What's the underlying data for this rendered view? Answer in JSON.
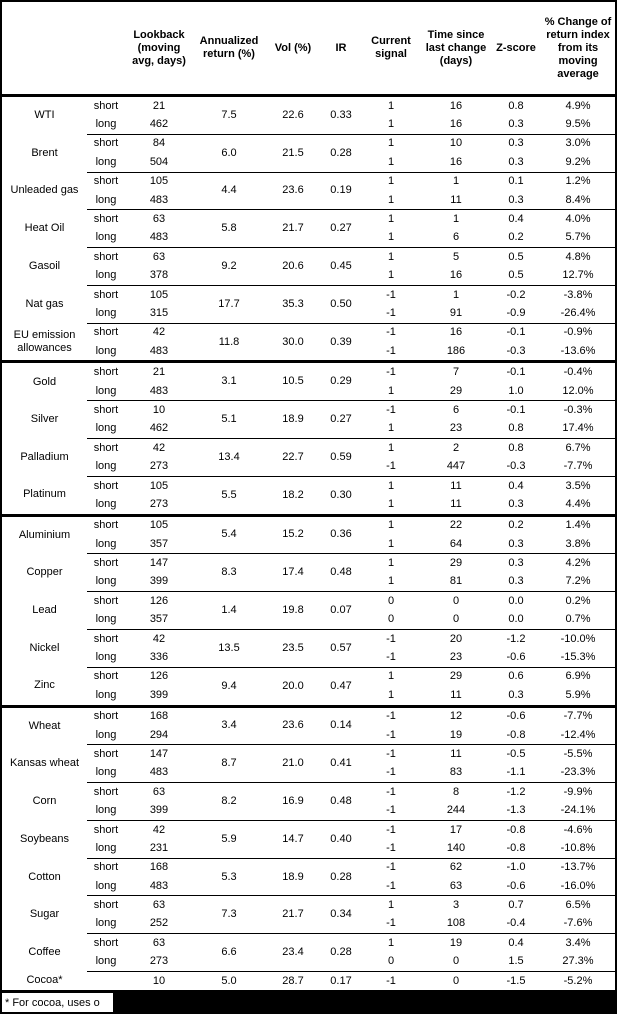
{
  "table": {
    "headers": [
      "Lookback (moving avg, days)",
      "Annualized return (%)",
      "Vol (%)",
      "IR",
      "Current signal",
      "Time since last change (days)",
      "Z-score",
      "% Change of return index from its moving average"
    ],
    "footnote": "* For cocoa, uses o",
    "colors": {
      "text": "#000000",
      "background": "#ffffff",
      "rule": "#000000"
    },
    "sections": [
      {
        "name": "energy",
        "commodities": [
          {
            "name": "WTI",
            "annualized": "7.5",
            "vol": "22.6",
            "ir": "0.33",
            "rows": [
              {
                "horizon": "short",
                "lookback": "21",
                "signal": "1",
                "time": "16",
                "z": "0.8",
                "pct": "4.9%"
              },
              {
                "horizon": "long",
                "lookback": "462",
                "signal": "1",
                "time": "16",
                "z": "0.3",
                "pct": "9.5%"
              }
            ]
          },
          {
            "name": "Brent",
            "annualized": "6.0",
            "vol": "21.5",
            "ir": "0.28",
            "rows": [
              {
                "horizon": "short",
                "lookback": "84",
                "signal": "1",
                "time": "10",
                "z": "0.3",
                "pct": "3.0%"
              },
              {
                "horizon": "long",
                "lookback": "504",
                "signal": "1",
                "time": "16",
                "z": "0.3",
                "pct": "9.2%"
              }
            ]
          },
          {
            "name": "Unleaded gas",
            "annualized": "4.4",
            "vol": "23.6",
            "ir": "0.19",
            "rows": [
              {
                "horizon": "short",
                "lookback": "105",
                "signal": "1",
                "time": "1",
                "z": "0.1",
                "pct": "1.2%"
              },
              {
                "horizon": "long",
                "lookback": "483",
                "signal": "1",
                "time": "11",
                "z": "0.3",
                "pct": "8.4%"
              }
            ]
          },
          {
            "name": "Heat Oil",
            "annualized": "5.8",
            "vol": "21.7",
            "ir": "0.27",
            "rows": [
              {
                "horizon": "short",
                "lookback": "63",
                "signal": "1",
                "time": "1",
                "z": "0.4",
                "pct": "4.0%"
              },
              {
                "horizon": "long",
                "lookback": "483",
                "signal": "1",
                "time": "6",
                "z": "0.2",
                "pct": "5.7%"
              }
            ]
          },
          {
            "name": "Gasoil",
            "annualized": "9.2",
            "vol": "20.6",
            "ir": "0.45",
            "rows": [
              {
                "horizon": "short",
                "lookback": "63",
                "signal": "1",
                "time": "5",
                "z": "0.5",
                "pct": "4.8%"
              },
              {
                "horizon": "long",
                "lookback": "378",
                "signal": "1",
                "time": "16",
                "z": "0.5",
                "pct": "12.7%"
              }
            ]
          },
          {
            "name": "Nat gas",
            "annualized": "17.7",
            "vol": "35.3",
            "ir": "0.50",
            "rows": [
              {
                "horizon": "short",
                "lookback": "105",
                "signal": "-1",
                "time": "1",
                "z": "-0.2",
                "pct": "-3.8%"
              },
              {
                "horizon": "long",
                "lookback": "315",
                "signal": "-1",
                "time": "91",
                "z": "-0.9",
                "pct": "-26.4%"
              }
            ]
          },
          {
            "name": "EU emission allowances",
            "annualized": "11.8",
            "vol": "30.0",
            "ir": "0.39",
            "rows": [
              {
                "horizon": "short",
                "lookback": "42",
                "signal": "-1",
                "time": "16",
                "z": "-0.1",
                "pct": "-0.9%"
              },
              {
                "horizon": "long",
                "lookback": "483",
                "signal": "-1",
                "time": "186",
                "z": "-0.3",
                "pct": "-13.6%"
              }
            ]
          }
        ]
      },
      {
        "name": "precious-metals",
        "commodities": [
          {
            "name": "Gold",
            "annualized": "3.1",
            "vol": "10.5",
            "ir": "0.29",
            "rows": [
              {
                "horizon": "short",
                "lookback": "21",
                "signal": "-1",
                "time": "7",
                "z": "-0.1",
                "pct": "-0.4%"
              },
              {
                "horizon": "long",
                "lookback": "483",
                "signal": "1",
                "time": "29",
                "z": "1.0",
                "pct": "12.0%"
              }
            ]
          },
          {
            "name": "Silver",
            "annualized": "5.1",
            "vol": "18.9",
            "ir": "0.27",
            "rows": [
              {
                "horizon": "short",
                "lookback": "10",
                "signal": "-1",
                "time": "6",
                "z": "-0.1",
                "pct": "-0.3%"
              },
              {
                "horizon": "long",
                "lookback": "462",
                "signal": "1",
                "time": "23",
                "z": "0.8",
                "pct": "17.4%"
              }
            ]
          },
          {
            "name": "Palladium",
            "annualized": "13.4",
            "vol": "22.7",
            "ir": "0.59",
            "rows": [
              {
                "horizon": "short",
                "lookback": "42",
                "signal": "1",
                "time": "2",
                "z": "0.8",
                "pct": "6.7%"
              },
              {
                "horizon": "long",
                "lookback": "273",
                "signal": "-1",
                "time": "447",
                "z": "-0.3",
                "pct": "-7.7%"
              }
            ]
          },
          {
            "name": "Platinum",
            "annualized": "5.5",
            "vol": "18.2",
            "ir": "0.30",
            "rows": [
              {
                "horizon": "short",
                "lookback": "105",
                "signal": "1",
                "time": "11",
                "z": "0.4",
                "pct": "3.5%"
              },
              {
                "horizon": "long",
                "lookback": "273",
                "signal": "1",
                "time": "11",
                "z": "0.3",
                "pct": "4.4%"
              }
            ]
          }
        ]
      },
      {
        "name": "base-metals",
        "commodities": [
          {
            "name": "Aluminium",
            "annualized": "5.4",
            "vol": "15.2",
            "ir": "0.36",
            "rows": [
              {
                "horizon": "short",
                "lookback": "105",
                "signal": "1",
                "time": "22",
                "z": "0.2",
                "pct": "1.4%"
              },
              {
                "horizon": "long",
                "lookback": "357",
                "signal": "1",
                "time": "64",
                "z": "0.3",
                "pct": "3.8%"
              }
            ]
          },
          {
            "name": "Copper",
            "annualized": "8.3",
            "vol": "17.4",
            "ir": "0.48",
            "rows": [
              {
                "horizon": "short",
                "lookback": "147",
                "signal": "1",
                "time": "29",
                "z": "0.3",
                "pct": "4.2%"
              },
              {
                "horizon": "long",
                "lookback": "399",
                "signal": "1",
                "time": "81",
                "z": "0.3",
                "pct": "7.2%"
              }
            ]
          },
          {
            "name": "Lead",
            "annualized": "1.4",
            "vol": "19.8",
            "ir": "0.07",
            "rows": [
              {
                "horizon": "short",
                "lookback": "126",
                "signal": "0",
                "time": "0",
                "z": "0.0",
                "pct": "0.2%"
              },
              {
                "horizon": "long",
                "lookback": "357",
                "signal": "0",
                "time": "0",
                "z": "0.0",
                "pct": "0.7%"
              }
            ]
          },
          {
            "name": "Nickel",
            "annualized": "13.5",
            "vol": "23.5",
            "ir": "0.57",
            "rows": [
              {
                "horizon": "short",
                "lookback": "42",
                "signal": "-1",
                "time": "20",
                "z": "-1.2",
                "pct": "-10.0%"
              },
              {
                "horizon": "long",
                "lookback": "336",
                "signal": "-1",
                "time": "23",
                "z": "-0.6",
                "pct": "-15.3%"
              }
            ]
          },
          {
            "name": "Zinc",
            "annualized": "9.4",
            "vol": "20.0",
            "ir": "0.47",
            "rows": [
              {
                "horizon": "short",
                "lookback": "126",
                "signal": "1",
                "time": "29",
                "z": "0.6",
                "pct": "6.9%"
              },
              {
                "horizon": "long",
                "lookback": "399",
                "signal": "1",
                "time": "11",
                "z": "0.3",
                "pct": "5.9%"
              }
            ]
          }
        ]
      },
      {
        "name": "agriculture",
        "commodities": [
          {
            "name": "Wheat",
            "annualized": "3.4",
            "vol": "23.6",
            "ir": "0.14",
            "rows": [
              {
                "horizon": "short",
                "lookback": "168",
                "signal": "-1",
                "time": "12",
                "z": "-0.6",
                "pct": "-7.7%"
              },
              {
                "horizon": "long",
                "lookback": "294",
                "signal": "-1",
                "time": "19",
                "z": "-0.8",
                "pct": "-12.4%"
              }
            ]
          },
          {
            "name": "Kansas wheat",
            "annualized": "8.7",
            "vol": "21.0",
            "ir": "0.41",
            "rows": [
              {
                "horizon": "short",
                "lookback": "147",
                "signal": "-1",
                "time": "11",
                "z": "-0.5",
                "pct": "-5.5%"
              },
              {
                "horizon": "long",
                "lookback": "483",
                "signal": "-1",
                "time": "83",
                "z": "-1.1",
                "pct": "-23.3%"
              }
            ]
          },
          {
            "name": "Corn",
            "annualized": "8.2",
            "vol": "16.9",
            "ir": "0.48",
            "rows": [
              {
                "horizon": "short",
                "lookback": "63",
                "signal": "-1",
                "time": "8",
                "z": "-1.2",
                "pct": "-9.9%"
              },
              {
                "horizon": "long",
                "lookback": "399",
                "signal": "-1",
                "time": "244",
                "z": "-1.3",
                "pct": "-24.1%"
              }
            ]
          },
          {
            "name": "Soybeans",
            "annualized": "5.9",
            "vol": "14.7",
            "ir": "0.40",
            "rows": [
              {
                "horizon": "short",
                "lookback": "42",
                "signal": "-1",
                "time": "17",
                "z": "-0.8",
                "pct": "-4.6%"
              },
              {
                "horizon": "long",
                "lookback": "231",
                "signal": "-1",
                "time": "140",
                "z": "-0.8",
                "pct": "-10.8%"
              }
            ]
          },
          {
            "name": "Cotton",
            "annualized": "5.3",
            "vol": "18.9",
            "ir": "0.28",
            "rows": [
              {
                "horizon": "short",
                "lookback": "168",
                "signal": "-1",
                "time": "62",
                "z": "-1.0",
                "pct": "-13.7%"
              },
              {
                "horizon": "long",
                "lookback": "483",
                "signal": "-1",
                "time": "63",
                "z": "-0.6",
                "pct": "-16.0%"
              }
            ]
          },
          {
            "name": "Sugar",
            "annualized": "7.3",
            "vol": "21.7",
            "ir": "0.34",
            "rows": [
              {
                "horizon": "short",
                "lookback": "63",
                "signal": "1",
                "time": "3",
                "z": "0.7",
                "pct": "6.5%"
              },
              {
                "horizon": "long",
                "lookback": "252",
                "signal": "-1",
                "time": "108",
                "z": "-0.4",
                "pct": "-7.6%"
              }
            ]
          },
          {
            "name": "Coffee",
            "annualized": "6.6",
            "vol": "23.4",
            "ir": "0.28",
            "rows": [
              {
                "horizon": "short",
                "lookback": "63",
                "signal": "1",
                "time": "19",
                "z": "0.4",
                "pct": "3.4%"
              },
              {
                "horizon": "long",
                "lookback": "273",
                "signal": "0",
                "time": "0",
                "z": "1.5",
                "pct": "27.3%"
              }
            ]
          },
          {
            "name": "Cocoa*",
            "annualized": "5.0",
            "vol": "28.7",
            "ir": "0.17",
            "rows": [
              {
                "horizon": "",
                "lookback": "10",
                "signal": "-1",
                "time": "0",
                "z": "-1.5",
                "pct": "-5.2%"
              }
            ]
          }
        ]
      }
    ]
  }
}
